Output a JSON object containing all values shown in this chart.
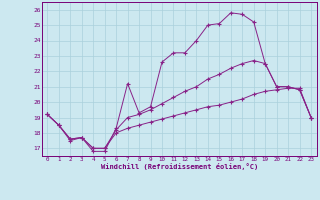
{
  "xlabel": "Windchill (Refroidissement éolien,°C)",
  "background_color": "#cce8f0",
  "grid_color": "#aad0dc",
  "line_color": "#882288",
  "x_labels": [
    "0",
    "1",
    "2",
    "3",
    "4",
    "5",
    "6",
    "7",
    "8",
    "9",
    "10",
    "11",
    "12",
    "13",
    "14",
    "15",
    "16",
    "17",
    "18",
    "19",
    "20",
    "21",
    "22",
    "23"
  ],
  "xlim": [
    -0.5,
    23.5
  ],
  "ylim": [
    16.5,
    26.5
  ],
  "yticks": [
    17,
    18,
    19,
    20,
    21,
    22,
    23,
    24,
    25,
    26
  ],
  "line1_x": [
    0,
    1,
    2,
    3,
    4,
    5,
    6,
    7,
    8,
    9,
    10,
    11,
    12,
    13,
    14,
    15,
    16,
    17,
    18,
    19,
    20,
    21,
    22,
    23
  ],
  "line1_y": [
    19.2,
    18.5,
    17.5,
    17.7,
    16.8,
    16.8,
    18.3,
    21.2,
    19.3,
    19.7,
    22.6,
    23.2,
    23.2,
    24.0,
    25.0,
    25.1,
    25.8,
    25.7,
    25.2,
    22.5,
    21.0,
    21.0,
    20.8,
    19.0
  ],
  "line2_x": [
    0,
    1,
    2,
    3,
    4,
    5,
    6,
    7,
    8,
    9,
    10,
    11,
    12,
    13,
    14,
    15,
    16,
    17,
    18,
    19,
    20,
    21,
    22,
    23
  ],
  "line2_y": [
    19.2,
    18.5,
    17.6,
    17.7,
    17.0,
    17.0,
    18.2,
    19.0,
    19.2,
    19.5,
    19.9,
    20.3,
    20.7,
    21.0,
    21.5,
    21.8,
    22.2,
    22.5,
    22.7,
    22.5,
    21.0,
    21.0,
    20.8,
    19.0
  ],
  "line3_x": [
    0,
    1,
    2,
    3,
    4,
    5,
    6,
    7,
    8,
    9,
    10,
    11,
    12,
    13,
    14,
    15,
    16,
    17,
    18,
    19,
    20,
    21,
    22,
    23
  ],
  "line3_y": [
    19.2,
    18.5,
    17.6,
    17.7,
    17.0,
    17.0,
    18.0,
    18.3,
    18.5,
    18.7,
    18.9,
    19.1,
    19.3,
    19.5,
    19.7,
    19.8,
    20.0,
    20.2,
    20.5,
    20.7,
    20.8,
    20.9,
    20.9,
    19.0
  ]
}
